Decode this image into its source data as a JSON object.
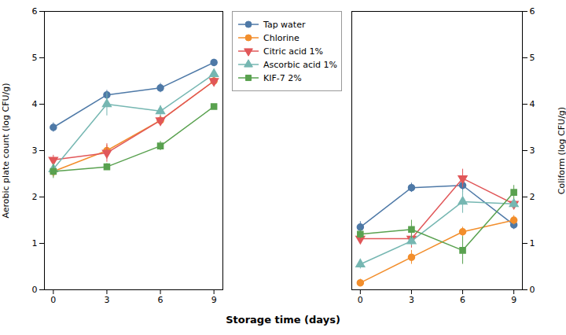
{
  "chart_data": [
    {
      "type": "line",
      "xlabel": "Storage time (days)",
      "ylabel": "Aerobic plate count (log CFU/g)",
      "x": [
        0,
        3,
        6,
        9
      ],
      "xlim": [
        -0.5,
        9.5
      ],
      "xticks": [
        0,
        3,
        6,
        9
      ],
      "ylim": [
        0,
        6
      ],
      "yticks": [
        0,
        1,
        2,
        3,
        4,
        5,
        6
      ],
      "series": [
        {
          "name": "Tap water",
          "marker": "circle",
          "values": [
            3.5,
            4.2,
            4.35,
            4.9
          ],
          "errors": [
            0.1,
            0.1,
            0.1,
            0.07
          ]
        },
        {
          "name": "Chlorine",
          "marker": "circle",
          "values": [
            2.55,
            3.0,
            3.65,
            4.5
          ],
          "errors": [
            0.12,
            0.12,
            0.1,
            0.08
          ]
        },
        {
          "name": "Citric acid 1%",
          "marker": "triangle-down",
          "values": [
            2.8,
            2.95,
            3.65,
            4.5
          ],
          "errors": [
            0.1,
            0.2,
            0.1,
            0.08
          ]
        },
        {
          "name": "Ascorbic acid 1%",
          "marker": "triangle",
          "values": [
            2.6,
            4.0,
            3.85,
            4.65
          ],
          "errors": [
            0.1,
            0.25,
            0.12,
            0.08
          ]
        },
        {
          "name": "KIF-7 2%",
          "marker": "square",
          "values": [
            2.55,
            2.65,
            3.1,
            3.95
          ],
          "errors": [
            0.15,
            0.07,
            0.1,
            0.05
          ]
        }
      ]
    },
    {
      "type": "line",
      "ylabel": "Coliform (log CFU/g)",
      "x": [
        0,
        3,
        6,
        9
      ],
      "xlim": [
        -0.5,
        9.5
      ],
      "xticks": [
        0,
        3,
        6,
        9
      ],
      "ylim": [
        0,
        6
      ],
      "yticks": [
        0,
        1,
        2,
        3,
        4,
        5,
        6
      ],
      "series": [
        {
          "name": "Tap water",
          "marker": "circle",
          "values": [
            1.35,
            2.2,
            2.25,
            1.4
          ],
          "errors": [
            0.12,
            0.1,
            0.15,
            0.1
          ]
        },
        {
          "name": "Chlorine",
          "marker": "circle",
          "values": [
            0.15,
            0.7,
            1.25,
            1.5
          ],
          "errors": [
            0.08,
            0.15,
            0.1,
            0.1
          ]
        },
        {
          "name": "Citric acid 1%",
          "marker": "triangle-down",
          "values": [
            1.1,
            1.1,
            2.4,
            1.85
          ],
          "errors": [
            0.1,
            0.2,
            0.2,
            0.1
          ]
        },
        {
          "name": "Ascorbic acid 1%",
          "marker": "triangle",
          "values": [
            0.55,
            1.05,
            1.9,
            1.85
          ],
          "errors": [
            0.1,
            0.1,
            0.25,
            0.1
          ]
        },
        {
          "name": "KIF-7 2%",
          "marker": "square",
          "values": [
            1.2,
            1.3,
            0.85,
            2.1
          ],
          "errors": [
            0.1,
            0.2,
            0.3,
            0.15
          ]
        }
      ]
    }
  ]
}
